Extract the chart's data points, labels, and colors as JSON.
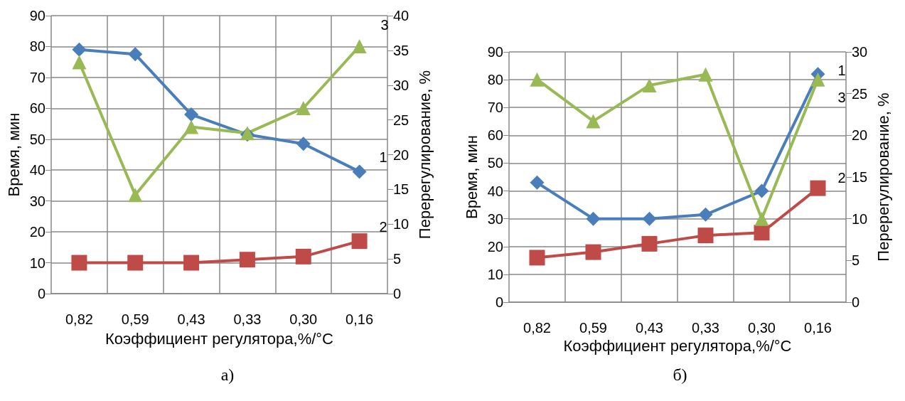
{
  "chart_data": [
    {
      "type": "line",
      "title": "а)",
      "xlabel": "Коэффициент регулятора,%/°C",
      "ylabel": "Время, мин",
      "y2label": "Перерегулирование, %",
      "categories": [
        "0,82",
        "0,59",
        "0,43",
        "0,33",
        "0,30",
        "0,16"
      ],
      "series": [
        {
          "name": "1",
          "color": "#4a7ebb",
          "marker": "diamond",
          "values": [
            79,
            77.5,
            58,
            51.5,
            48.5,
            39.5
          ]
        },
        {
          "name": "2",
          "color": "#be4b48",
          "marker": "square",
          "values": [
            10,
            10,
            10,
            11,
            12,
            17
          ]
        },
        {
          "name": "3",
          "color": "#98b954",
          "marker": "triangle",
          "axis": "y2",
          "values": [
            33.3,
            14.2,
            24,
            23.1,
            26.7,
            35.6
          ]
        }
      ],
      "ylim": [
        0,
        90
      ],
      "yticks": [
        0,
        10,
        20,
        30,
        40,
        50,
        60,
        70,
        80,
        90
      ],
      "y2lim": [
        0,
        40
      ],
      "y2ticks": [
        0,
        5,
        10,
        15,
        20,
        25,
        30,
        35,
        40
      ],
      "grid": true,
      "legend": false
    },
    {
      "type": "line",
      "title": "б)",
      "xlabel": "Коэффициент регулятора,%/°C",
      "ylabel": "Время, мин",
      "y2label": "Перерегулирование, %",
      "categories": [
        "0,82",
        "0,59",
        "0,43",
        "0,33",
        "0,30",
        "0,16"
      ],
      "series": [
        {
          "name": "1",
          "color": "#4a7ebb",
          "marker": "diamond",
          "values": [
            43,
            30,
            30,
            31.5,
            40,
            82
          ]
        },
        {
          "name": "2",
          "color": "#be4b48",
          "marker": "square",
          "values": [
            16,
            18,
            21,
            24,
            25,
            41
          ]
        },
        {
          "name": "3",
          "color": "#98b954",
          "marker": "triangle",
          "axis": "y2",
          "values": [
            26.7,
            21.7,
            26,
            27.3,
            10,
            26.7
          ]
        }
      ],
      "ylim": [
        0,
        90
      ],
      "yticks": [
        0,
        10,
        20,
        30,
        40,
        50,
        60,
        70,
        80,
        90
      ],
      "y2lim": [
        0,
        30
      ],
      "y2ticks": [
        0,
        5,
        10,
        15,
        20,
        25,
        30
      ],
      "grid": true,
      "legend": false
    }
  ]
}
